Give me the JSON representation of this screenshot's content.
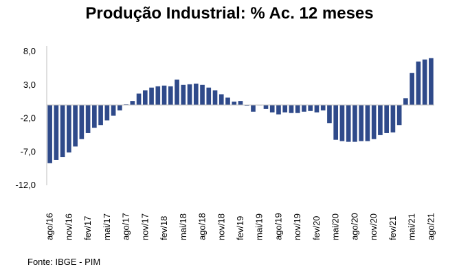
{
  "chart_data": {
    "type": "bar",
    "title": "Produção Industrial: % Ac. 12 meses",
    "source": "Fonte: IBGE - PIM",
    "xlabel": "",
    "ylabel": "",
    "ylim": [
      -12.0,
      8.0
    ],
    "yticks": [
      "8,0",
      "3,0",
      "-2,0",
      "-7,0",
      "-12,0"
    ],
    "ytick_values": [
      8,
      3,
      -2,
      -7,
      -12
    ],
    "grid": false,
    "legend": "none",
    "bar_color": "#2F4A8A",
    "categories": [
      "ago/16",
      "set/16",
      "out/16",
      "nov/16",
      "dez/16",
      "jan/17",
      "fev/17",
      "mar/17",
      "abr/17",
      "mai/17",
      "jun/17",
      "jul/17",
      "ago/17",
      "set/17",
      "out/17",
      "nov/17",
      "dez/17",
      "jan/18",
      "fev/18",
      "mar/18",
      "abr/18",
      "mai/18",
      "jun/18",
      "jul/18",
      "ago/18",
      "set/18",
      "out/18",
      "nov/18",
      "dez/18",
      "jan/19",
      "fev/19",
      "mar/19",
      "abr/19",
      "mai/19",
      "jun/19",
      "jul/19",
      "ago/19",
      "set/19",
      "out/19",
      "nov/19",
      "dez/19",
      "jan/20",
      "fev/20",
      "mar/20",
      "abr/20",
      "mai/20",
      "jun/20",
      "jul/20",
      "ago/20",
      "set/20",
      "out/20",
      "nov/20",
      "dez/20",
      "jan/21",
      "fev/21",
      "mar/21",
      "abr/21",
      "mai/21",
      "jun/21",
      "jul/21",
      "ago/21"
    ],
    "x_tick_labels": [
      "ago/16",
      "nov/16",
      "fev/17",
      "mai/17",
      "ago/17",
      "nov/17",
      "fev/18",
      "mai/18",
      "ago/18",
      "nov/18",
      "fev/19",
      "mai/19",
      "ago/19",
      "nov/19",
      "fev/20",
      "mai/20",
      "ago/20",
      "nov/20",
      "fev/21",
      "mai/21",
      "ago/21"
    ],
    "values": [
      -8.7,
      -8.2,
      -7.8,
      -7.1,
      -6.2,
      -5.1,
      -4.2,
      -3.4,
      -3.0,
      -2.3,
      -1.6,
      -0.8,
      0.1,
      0.6,
      1.7,
      2.2,
      2.6,
      2.8,
      2.9,
      2.8,
      3.8,
      3.0,
      3.1,
      3.2,
      3.0,
      2.6,
      2.2,
      1.6,
      1.1,
      0.5,
      0.6,
      -0.1,
      -1.0,
      0.0,
      -0.6,
      -1.1,
      -1.4,
      -1.1,
      -1.2,
      -1.2,
      -1.0,
      -0.9,
      -1.1,
      -0.8,
      -2.7,
      -5.2,
      -5.4,
      -5.5,
      -5.5,
      -5.4,
      -5.4,
      -5.1,
      -4.5,
      -4.2,
      -4.1,
      -3.0,
      1.0,
      4.8,
      6.5,
      6.8,
      7.0
    ]
  }
}
